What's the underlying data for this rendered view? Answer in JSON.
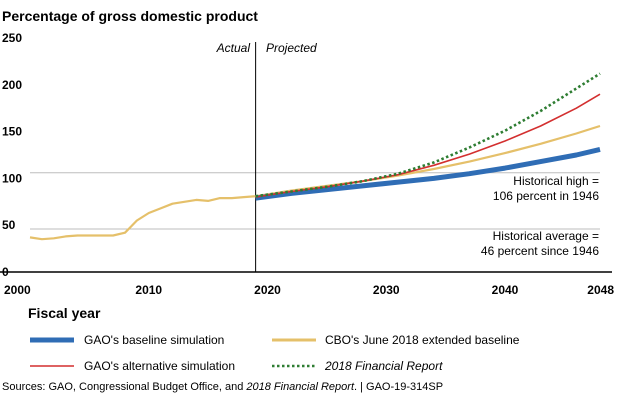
{
  "chart_data": {
    "type": "line",
    "title": "Percentage of gross domestic product",
    "xlabel": "Fiscal year",
    "ylabel": "",
    "xlim": [
      2000,
      2048
    ],
    "ylim": [
      0,
      250
    ],
    "x_ticks": [
      "2000",
      "2010",
      "2020",
      "2030",
      "2040",
      "2048"
    ],
    "x_tick_values": [
      2000,
      2010,
      2020,
      2030,
      2040,
      2048
    ],
    "y_ticks": [
      "0",
      "50",
      "100",
      "150",
      "200",
      "250"
    ],
    "y_tick_values": [
      0,
      50,
      100,
      150,
      200,
      250
    ],
    "divider_year": 2019,
    "region_labels": {
      "actual": "Actual",
      "projected": "Projected"
    },
    "reference_lines": [
      {
        "value": 106,
        "label_line1": "Historical high =",
        "label_line2": "106 percent in 1946"
      },
      {
        "value": 46,
        "label_line1": "Historical average =",
        "label_line2": "46 percent since 1946"
      }
    ],
    "series": [
      {
        "name": "GAO's baseline simulation",
        "color": "#2f6db5",
        "style": "solid-thick",
        "x": [
          2019,
          2022,
          2025,
          2028,
          2031,
          2034,
          2037,
          2040,
          2043,
          2046,
          2048
        ],
        "y": [
          79,
          84,
          88,
          92,
          96,
          100,
          105,
          111,
          118,
          125,
          131
        ]
      },
      {
        "name": "CBO's June 2018 extended baseline",
        "color": "#e5c06a",
        "style": "solid",
        "x": [
          2000,
          2001,
          2002,
          2003,
          2004,
          2005,
          2006,
          2007,
          2008,
          2009,
          2010,
          2011,
          2012,
          2013,
          2014,
          2015,
          2016,
          2017,
          2018,
          2019,
          2022,
          2025,
          2028,
          2031,
          2034,
          2037,
          2040,
          2043,
          2046,
          2048
        ],
        "y": [
          37,
          35,
          36,
          38,
          39,
          39,
          39,
          39,
          42,
          55,
          63,
          68,
          73,
          75,
          77,
          76,
          79,
          79,
          80,
          81,
          87,
          92,
          97,
          103,
          110,
          118,
          127,
          137,
          148,
          156
        ]
      },
      {
        "name": "GAO's alternative simulation",
        "color": "#d32f2f",
        "style": "solid",
        "x": [
          2019,
          2022,
          2025,
          2028,
          2031,
          2034,
          2037,
          2040,
          2043,
          2046,
          2048
        ],
        "y": [
          80,
          86,
          91,
          97,
          104,
          114,
          126,
          140,
          156,
          175,
          190
        ]
      },
      {
        "name": "2018 Financial Report",
        "color": "#2e7d32",
        "style": "dotted",
        "x": [
          2019,
          2022,
          2025,
          2028,
          2031,
          2034,
          2037,
          2040,
          2043,
          2046,
          2048
        ],
        "y": [
          81,
          86,
          91,
          97,
          105,
          117,
          133,
          151,
          172,
          196,
          212
        ]
      }
    ]
  },
  "legend": {
    "items": [
      {
        "label": "GAO's baseline simulation"
      },
      {
        "label": "CBO's June 2018 extended baseline"
      },
      {
        "label": "GAO's alternative simulation"
      },
      {
        "label": "2018 Financial Report"
      }
    ]
  },
  "source": {
    "prefix": "Sources: GAO, Congressional Budget Office, and ",
    "italic": "2018 Financial Report",
    "suffix": ".  |  GAO-19-314SP"
  }
}
